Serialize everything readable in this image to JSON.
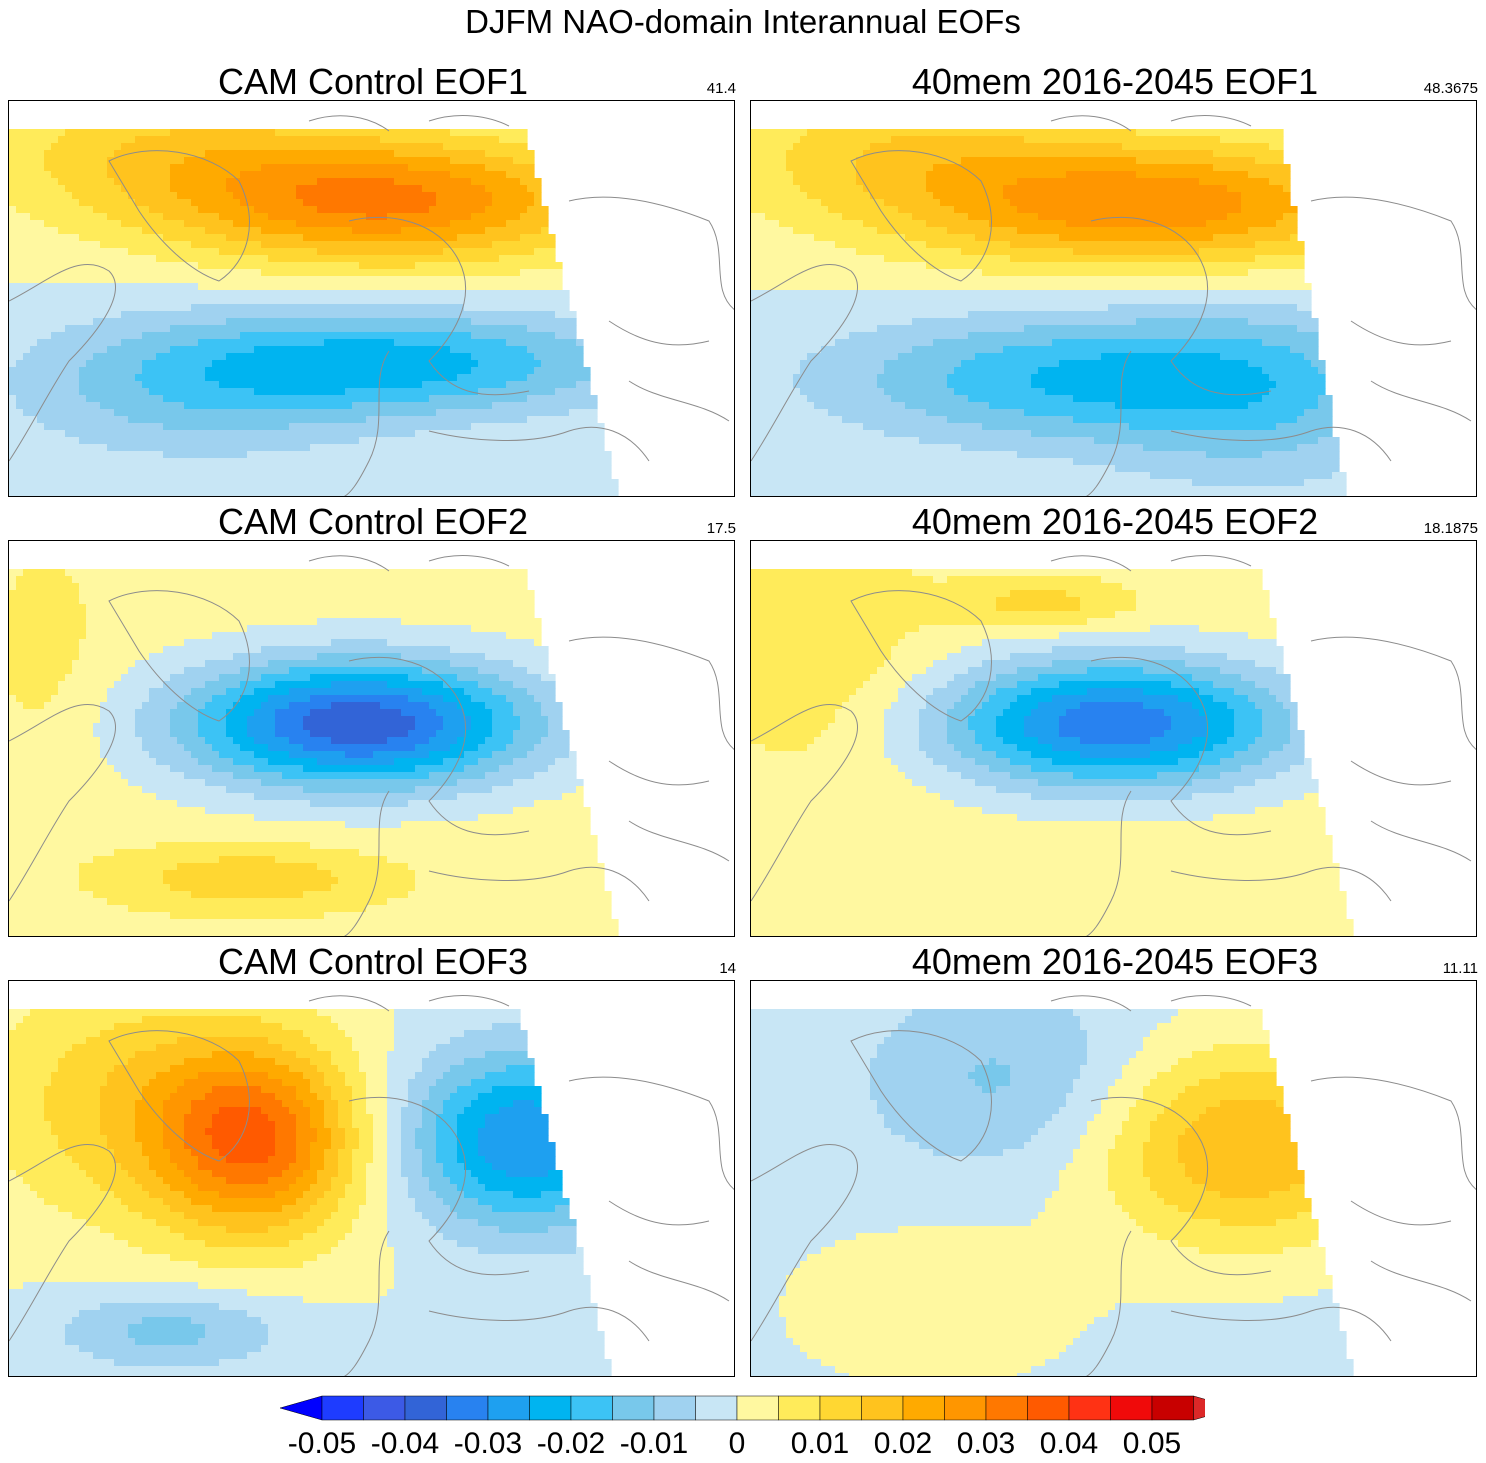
{
  "title": "DJFM NAO-domain Interannual EOFs",
  "panels": [
    {
      "id": "p1",
      "title": "CAM Control EOF1",
      "variance": "41.4",
      "pattern": "eof1a"
    },
    {
      "id": "p2",
      "title": "40mem 2016-2045 EOF1",
      "variance": "48.3675",
      "pattern": "eof1b"
    },
    {
      "id": "p3",
      "title": "CAM Control EOF2",
      "variance": "17.5",
      "pattern": "eof2a"
    },
    {
      "id": "p4",
      "title": "40mem 2016-2045 EOF2",
      "variance": "18.1875",
      "pattern": "eof2b"
    },
    {
      "id": "p5",
      "title": "CAM Control EOF3",
      "variance": "14",
      "pattern": "eof3a"
    },
    {
      "id": "p6",
      "title": "40mem 2016-2045 EOF3",
      "variance": "11.11",
      "pattern": "eof3b"
    }
  ],
  "colorbar": {
    "tick_labels": [
      "-0.05",
      "-0.04",
      "-0.03",
      "-0.02",
      "-0.01",
      "0",
      "0.01",
      "0.02",
      "0.03",
      "0.04",
      "0.05"
    ],
    "colors": [
      "#0000ff",
      "#1e3cff",
      "#3c5ae6",
      "#3264d7",
      "#2882f0",
      "#1ea0f0",
      "#00b4f0",
      "#3cc3f5",
      "#78c8eb",
      "#a0d2f0",
      "#c8e6f5",
      "#fff8a0",
      "#ffeb5a",
      "#ffd732",
      "#ffc31e",
      "#ffaa00",
      "#ff9600",
      "#ff7800",
      "#ff5a00",
      "#ff3214",
      "#f00a0a",
      "#c80000",
      "#dc2828"
    ]
  },
  "chart_data": [
    {
      "type": "heatmap",
      "title": "CAM Control EOF1",
      "variance_pct": 41.4,
      "pattern": "dipole: positive over Iceland/Greenland-Scandinavia (max ~0.03), negative over mid-latitude Atlantic/Europe (min ~-0.02)"
    },
    {
      "type": "heatmap",
      "title": "40mem 2016-2045 EOF1",
      "variance_pct": 48.3675,
      "pattern": "dipole: positive over Greenland-Scandinavia (max ~0.03), negative over mid-latitude Atlantic (min ~-0.02)"
    },
    {
      "type": "heatmap",
      "title": "CAM Control EOF2",
      "variance_pct": 17.5,
      "pattern": "monopole: negative centered west of British Isles (min ~-0.04), weak positive subtropics"
    },
    {
      "type": "heatmap",
      "title": "40mem 2016-2045 EOF2",
      "variance_pct": 18.1875,
      "pattern": "monopole: negative centered over British Isles (min ~-0.035), weak positive elsewhere"
    },
    {
      "type": "heatmap",
      "title": "CAM Control EOF3",
      "variance_pct": 14,
      "pattern": "tripole: positive over Labrador/Greenland (max ~0.03), negative over Scandinavia (min ~-0.03)"
    },
    {
      "type": "heatmap",
      "title": "40mem 2016-2045 EOF3",
      "variance_pct": 11.11,
      "pattern": "positive over Scandinavia/Baltic (max ~0.02), weak negative over North Atlantic"
    }
  ],
  "colorbar_range": [
    -0.05,
    0.05
  ],
  "colorbar_step": 0.005
}
